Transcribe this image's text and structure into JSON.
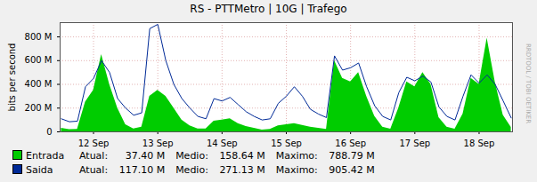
{
  "chart_data": {
    "type": "area",
    "title": "RS - PTTMetro | 10G | Trafego",
    "y_label": "bits per second",
    "watermark": "RRDTOOL / TOBI OETIKER",
    "x": [
      12,
      12.125,
      12.25,
      12.375,
      12.5,
      12.625,
      12.75,
      12.875,
      13,
      13.125,
      13.25,
      13.375,
      13.5,
      13.625,
      13.75,
      13.875,
      14,
      14.125,
      14.25,
      14.375,
      14.5,
      14.625,
      14.75,
      14.875,
      15,
      15.125,
      15.25,
      15.375,
      15.5,
      15.625,
      15.75,
      15.875,
      16,
      16.125,
      16.25,
      16.375,
      16.5,
      16.625,
      16.75,
      16.875,
      17,
      17.125,
      17.25,
      17.375,
      17.5,
      17.625,
      17.75,
      17.875,
      18,
      18.125,
      18.25,
      18.375,
      18.5,
      18.625,
      18.75,
      18.875,
      19
    ],
    "series": [
      {
        "name": "Entrada",
        "type": "area",
        "color": "#00cc00",
        "stats": [
          {
            "label": "Atual:",
            "value": "37.40 M"
          },
          {
            "label": "Medio:",
            "value": "158.64 M"
          },
          {
            "label": "Maximo:",
            "value": "788.79 M"
          }
        ],
        "values": [
          30,
          18,
          20,
          250,
          350,
          650,
          400,
          200,
          60,
          25,
          40,
          300,
          350,
          300,
          200,
          100,
          50,
          25,
          25,
          90,
          100,
          110,
          70,
          45,
          30,
          15,
          20,
          50,
          60,
          70,
          55,
          40,
          30,
          20,
          600,
          450,
          420,
          500,
          300,
          130,
          40,
          22,
          200,
          420,
          380,
          500,
          400,
          120,
          40,
          22,
          150,
          450,
          400,
          788.79,
          420,
          140,
          37.4
        ]
      },
      {
        "name": "Saida",
        "type": "line",
        "color": "#002a97",
        "stats": [
          {
            "label": "Atual:",
            "value": "117.10 M"
          },
          {
            "label": "Medio:",
            "value": "271.13 M"
          },
          {
            "label": "Maximo:",
            "value": "905.42 M"
          }
        ],
        "values": [
          110,
          85,
          90,
          380,
          450,
          600,
          500,
          280,
          200,
          140,
          160,
          870,
          905.42,
          600,
          400,
          280,
          200,
          130,
          110,
          280,
          260,
          290,
          230,
          170,
          130,
          100,
          110,
          240,
          300,
          380,
          300,
          190,
          150,
          120,
          640,
          520,
          540,
          580,
          380,
          220,
          130,
          100,
          330,
          460,
          430,
          470,
          420,
          210,
          130,
          100,
          300,
          480,
          410,
          480,
          400,
          260,
          117.1
        ]
      }
    ],
    "xlim": [
      11.98,
      19.02
    ],
    "xticks": [
      {
        "value": 12.5,
        "label": "12 Sep"
      },
      {
        "value": 13.5,
        "label": "13 Sep"
      },
      {
        "value": 14.5,
        "label": "14 Sep"
      },
      {
        "value": 15.5,
        "label": "15 Sep"
      },
      {
        "value": 16.5,
        "label": "16 Sep"
      },
      {
        "value": 17.5,
        "label": "17 Sep"
      },
      {
        "value": 18.5,
        "label": "18 Sep"
      }
    ],
    "ylim": [
      0,
      920
    ],
    "yticks": [
      0,
      {
        "value": 200,
        "label": "200 M"
      },
      {
        "value": 400,
        "label": "400 M"
      },
      {
        "value": 600,
        "label": "600 M"
      },
      {
        "value": 800,
        "label": "800 M"
      }
    ],
    "grid": true
  }
}
